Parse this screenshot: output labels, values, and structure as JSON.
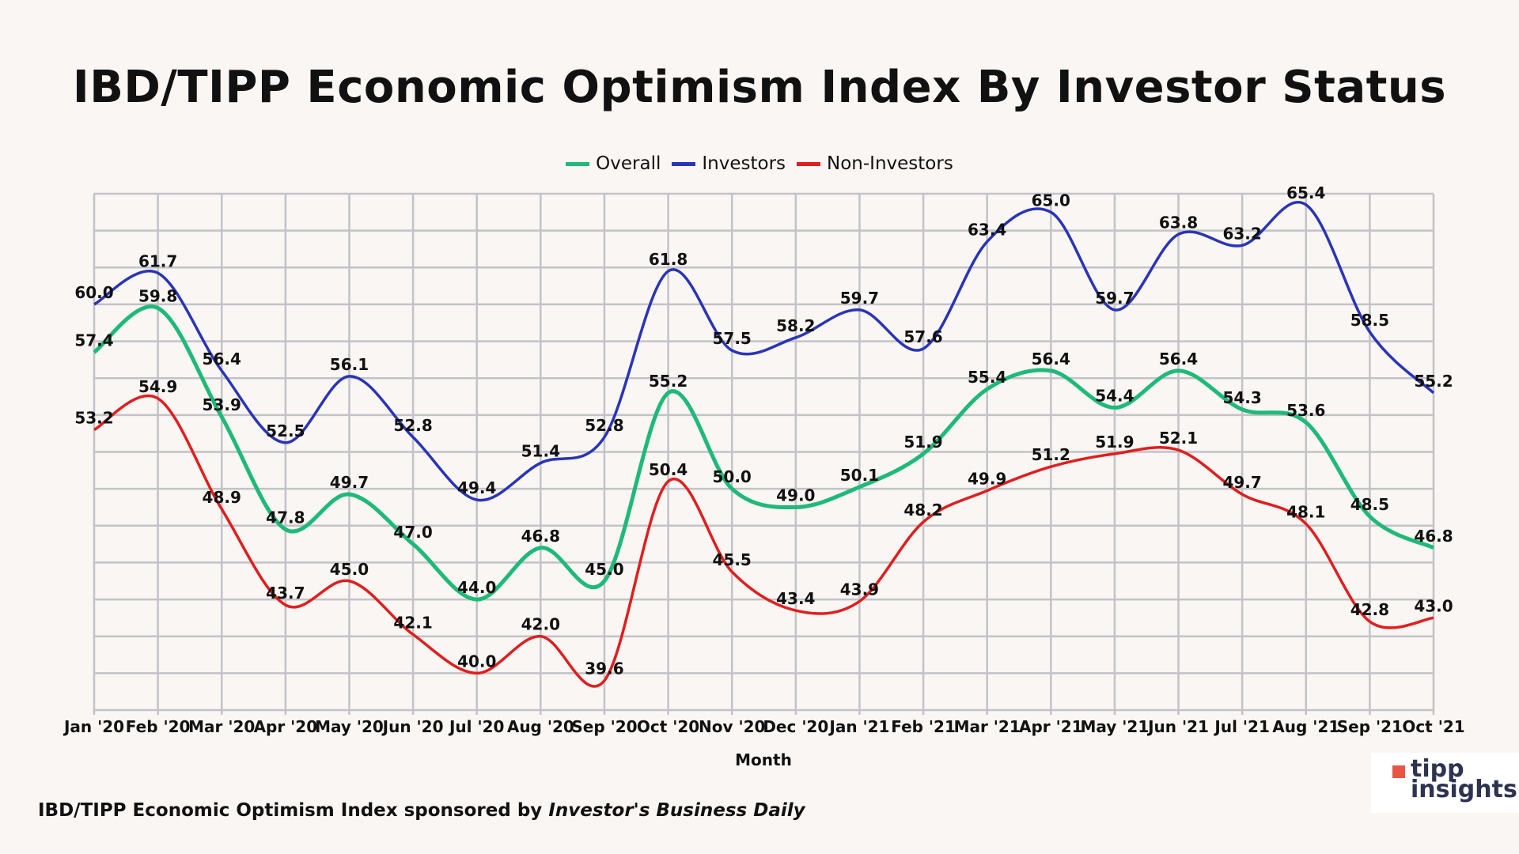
{
  "chart_data": {
    "type": "line",
    "title": "IBD/TIPP Economic Optimism Index By Investor Status",
    "xlabel": "Month",
    "ylabel": "",
    "ylim": [
      38,
      66
    ],
    "grid": true,
    "legend": "top",
    "categories": [
      "Jan '20",
      "Feb '20",
      "Mar '20",
      "Apr '20",
      "May '20",
      "Jun '20",
      "Jul '20",
      "Aug '20",
      "Sep '20",
      "Oct '20",
      "Nov '20",
      "Dec '20",
      "Jan '21",
      "Feb '21",
      "Mar '21",
      "Apr '21",
      "May '21",
      "Jun '21",
      "Jul '21",
      "Aug '21",
      "Sep '21",
      "Oct '21"
    ],
    "series": [
      {
        "name": "Overall",
        "color": "#1fb979",
        "values": [
          57.4,
          59.8,
          53.9,
          47.8,
          49.7,
          47.0,
          44.0,
          46.8,
          45.0,
          55.2,
          50.0,
          49.0,
          50.1,
          51.9,
          55.4,
          56.4,
          54.4,
          56.4,
          54.3,
          53.6,
          48.5,
          46.8
        ]
      },
      {
        "name": "Investors",
        "color": "#2a34b8",
        "values": [
          60.0,
          61.7,
          56.4,
          52.5,
          56.1,
          52.8,
          49.4,
          51.4,
          52.8,
          61.8,
          57.5,
          58.2,
          59.7,
          57.6,
          63.4,
          65.0,
          59.7,
          63.8,
          63.2,
          65.4,
          58.5,
          55.2
        ]
      },
      {
        "name": "Non-Investors",
        "color": "#e01e1e",
        "values": [
          53.2,
          54.9,
          48.9,
          43.7,
          45.0,
          42.1,
          40.0,
          42.0,
          39.6,
          50.4,
          45.5,
          43.4,
          43.9,
          48.2,
          49.9,
          51.2,
          51.9,
          52.1,
          49.7,
          48.1,
          42.8,
          43.0
        ]
      }
    ]
  },
  "footer": {
    "text": "IBD/TIPP Economic Optimism Index sponsored by ",
    "source": "Investor's Business Daily"
  },
  "logo": {
    "line1": "tipp",
    "line2": "insights"
  }
}
